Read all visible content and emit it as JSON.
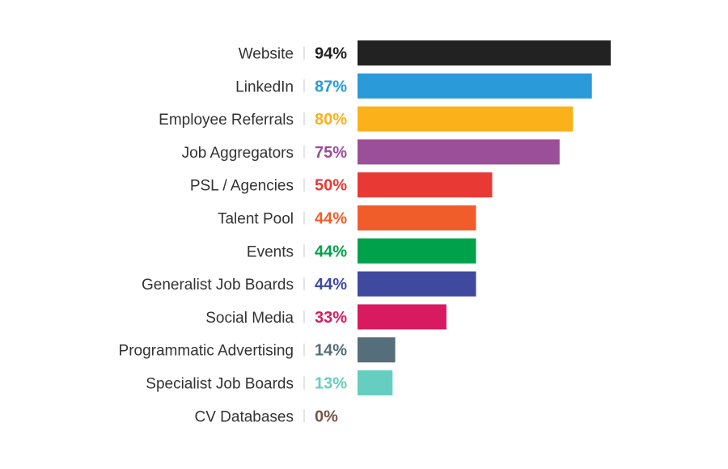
{
  "chart_data": {
    "type": "bar",
    "orientation": "horizontal",
    "title": "",
    "xlabel": "",
    "ylabel": "",
    "xlim": [
      0,
      100
    ],
    "grid": false,
    "value_suffix": "%",
    "categories": [
      "Website",
      "LinkedIn",
      "Employee Referrals",
      "Job Aggregators",
      "PSL / Agencies",
      "Talent Pool",
      "Events",
      "Generalist Job Boards",
      "Social Media",
      "Programmatic Advertising",
      "Specialist Job Boards",
      "CV Databases"
    ],
    "values": [
      94,
      87,
      80,
      75,
      50,
      44,
      44,
      44,
      33,
      14,
      13,
      0
    ],
    "value_labels": [
      "94%",
      "87%",
      "80%",
      "75%",
      "50%",
      "44%",
      "44%",
      "44%",
      "33%",
      "14%",
      "13%",
      "0%"
    ],
    "colors": [
      "#222222",
      "#2a9ad8",
      "#fbb11a",
      "#9a4f98",
      "#e83935",
      "#f15d2a",
      "#00a14b",
      "#3f4a9f",
      "#d81b60",
      "#546e7a",
      "#66cec0",
      "#795548"
    ]
  }
}
